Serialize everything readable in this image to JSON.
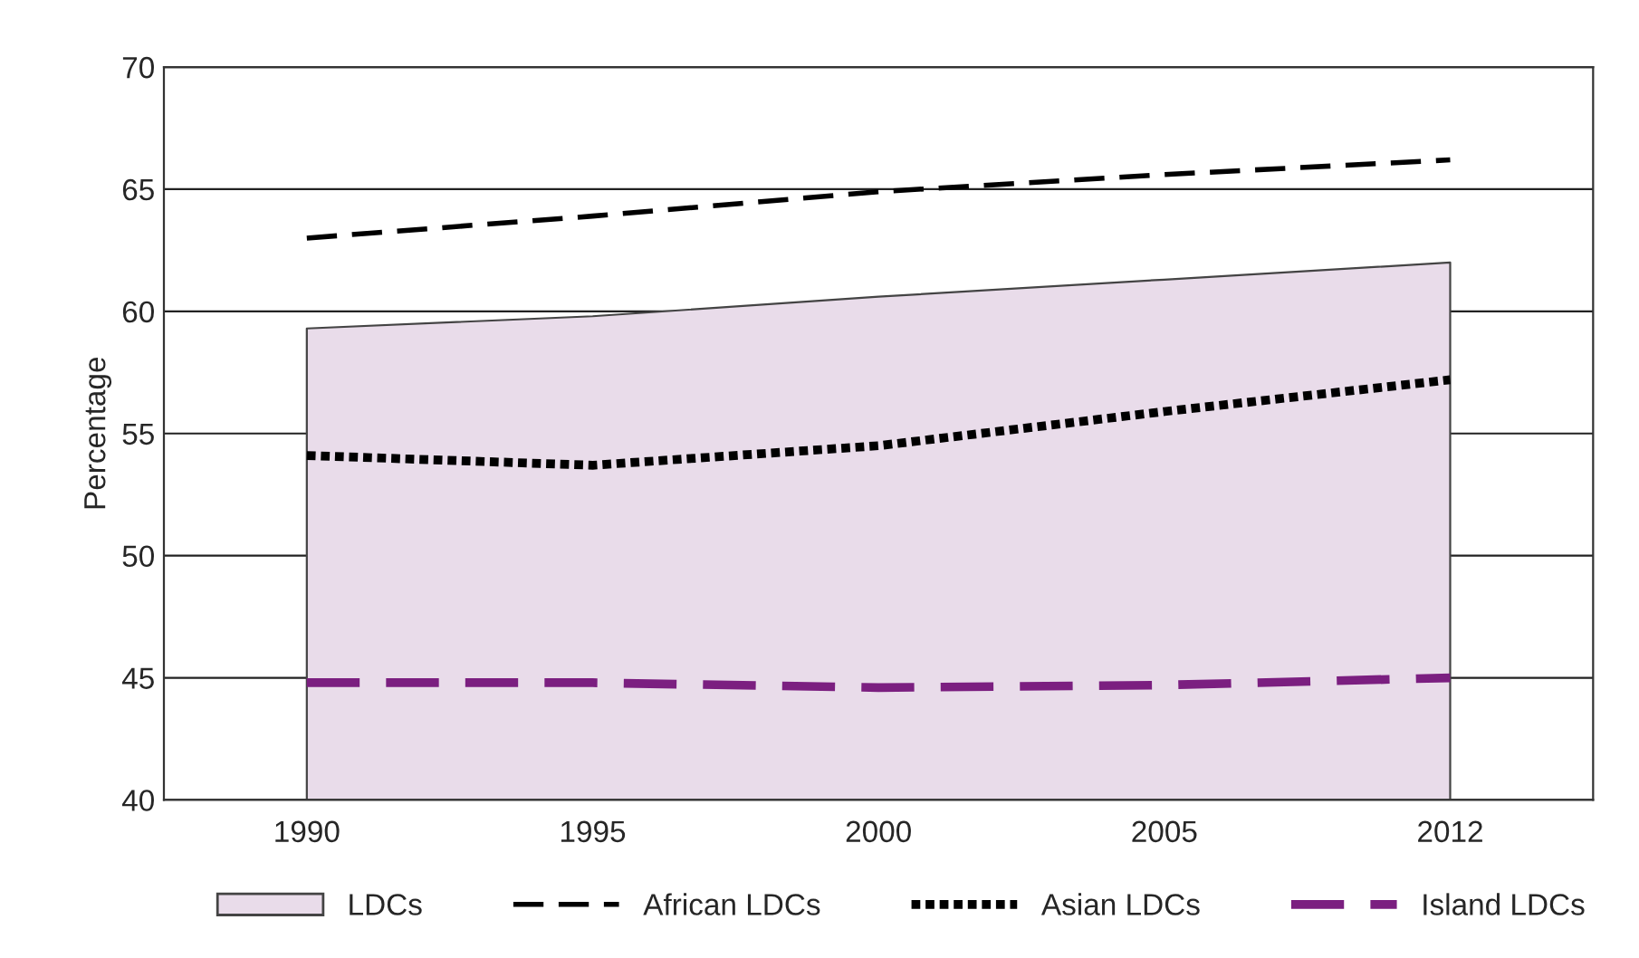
{
  "chart_data": {
    "type": "line",
    "ylabel": "Percentage",
    "categories": [
      "1990",
      "1995",
      "2000",
      "2005",
      "2012"
    ],
    "series": [
      {
        "name": "LDCs",
        "type": "area",
        "color": "#e9dcea",
        "values": [
          59.3,
          59.8,
          60.6,
          61.3,
          62.0
        ]
      },
      {
        "name": "African LDCs",
        "color": "#000000",
        "line_style": "dashed",
        "values": [
          63.0,
          63.9,
          64.9,
          65.6,
          66.2
        ]
      },
      {
        "name": "Asian LDCs",
        "color": "#000000",
        "line_style": "dotted",
        "values": [
          54.1,
          53.7,
          54.5,
          55.9,
          57.2
        ]
      },
      {
        "name": "Island LDCs",
        "color": "#7b1f80",
        "line_style": "dashed",
        "values": [
          44.8,
          44.8,
          44.6,
          44.7,
          45.0
        ]
      }
    ],
    "ylim": [
      40,
      70
    ],
    "yticks": [
      40,
      45,
      50,
      55,
      60,
      65,
      70
    ],
    "grid": "y",
    "legend": "bottom"
  }
}
